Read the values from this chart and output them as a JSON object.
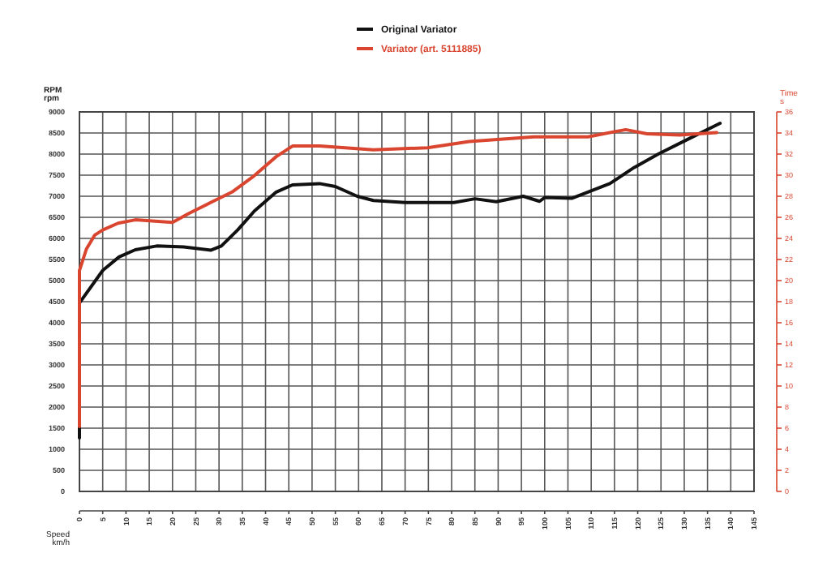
{
  "chart_data": {
    "type": "line",
    "ylabel": "RPM\nrpm",
    "y2label": "Time\ns",
    "xlabel": "Speed\nkm/h",
    "xlim": [
      0,
      145
    ],
    "xticks": [
      0,
      5,
      10,
      15,
      20,
      25,
      30,
      35,
      40,
      45,
      50,
      55,
      60,
      65,
      70,
      75,
      80,
      85,
      90,
      95,
      100,
      105,
      110,
      115,
      120,
      125,
      130,
      135,
      140,
      145
    ],
    "ylim": [
      0,
      9000
    ],
    "yticks": [
      0,
      500,
      1000,
      1500,
      2000,
      2500,
      3000,
      3500,
      4000,
      4500,
      5000,
      5500,
      6000,
      6500,
      7000,
      7500,
      8000,
      8500,
      9000
    ],
    "y2lim": [
      0,
      36
    ],
    "y2ticks": [
      0,
      2,
      4,
      6,
      8,
      10,
      12,
      14,
      16,
      18,
      20,
      22,
      24,
      26,
      28,
      30,
      32,
      34,
      36
    ],
    "grid": true,
    "legend": "top",
    "line_style": "solid",
    "series": [
      {
        "name": "Original Variator",
        "color": "#111111",
        "x": [
          0,
          0,
          5,
          8.5,
          12,
          16.6,
          22.4,
          28.2,
          30.5,
          34,
          37.6,
          42.3,
          45.8,
          51.6,
          55,
          59.7,
          63.2,
          70,
          80.5,
          85,
          89.6,
          95.4,
          98.9,
          100,
          105.8,
          109.3,
          114,
          119.2,
          124.4,
          130.2,
          137.7
        ],
        "values": [
          1270,
          4470,
          5240,
          5560,
          5730,
          5820,
          5800,
          5720,
          5820,
          6200,
          6650,
          7100,
          7270,
          7300,
          7230,
          7000,
          6900,
          6850,
          6850,
          6940,
          6870,
          7000,
          6880,
          6970,
          6950,
          7100,
          7300,
          7680,
          8000,
          8320,
          8730
        ]
      },
      {
        "name": "Variator (art. 5111885)",
        "color": "#d9452f",
        "x": [
          0,
          0,
          1.5,
          3.3,
          5,
          8.3,
          12,
          20,
          23.5,
          28.2,
          32.8,
          37.6,
          42.3,
          45.8,
          51.6,
          63.2,
          74.8,
          83.8,
          97.7,
          109.3,
          117.4,
          122,
          129,
          137
        ],
        "values": [
          1540,
          5240,
          5750,
          6080,
          6200,
          6360,
          6440,
          6380,
          6590,
          6850,
          7100,
          7490,
          7940,
          8190,
          8190,
          8100,
          8150,
          8300,
          8410,
          8410,
          8580,
          8480,
          8450,
          8510
        ]
      }
    ]
  }
}
